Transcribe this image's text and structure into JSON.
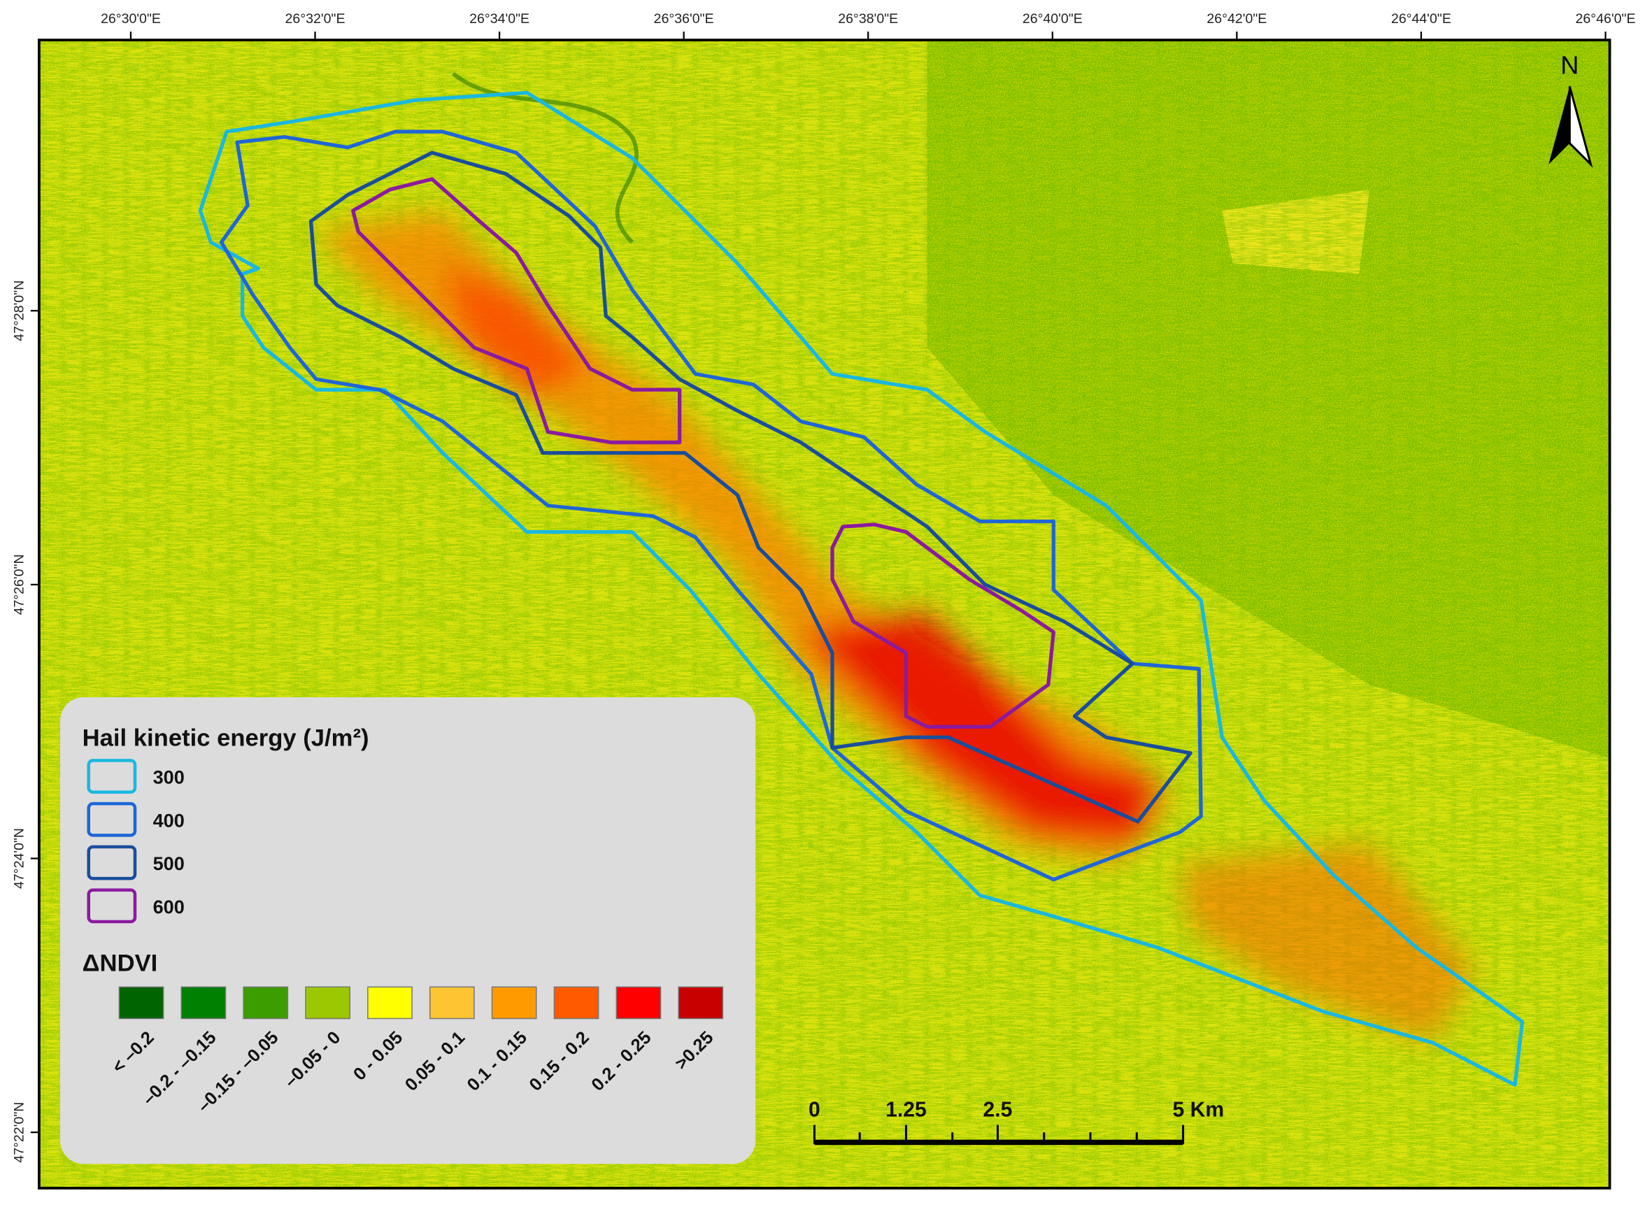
{
  "graticule": {
    "longitudes": [
      "26°30'0\"E",
      "26°32'0\"E",
      "26°34'0\"E",
      "26°36'0\"E",
      "26°38'0\"E",
      "26°40'0\"E",
      "26°42'0\"E",
      "26°44'0\"E",
      "26°46'0\"E"
    ],
    "latitudes": [
      "47°28'0\"N",
      "47°26'0\"N",
      "47°24'0\"N",
      "47°22'0\"N"
    ]
  },
  "north_arrow": "N",
  "legend": {
    "title": "Hail kinetic energy (J/m²)",
    "contours": [
      {
        "label": "300",
        "color": "#1ab8e0"
      },
      {
        "label": "400",
        "color": "#1f66d6"
      },
      {
        "label": "500",
        "color": "#1a4d9c"
      },
      {
        "label": "600",
        "color": "#8b1aa0"
      }
    ],
    "ndvi_title": "ΔNDVI",
    "ndvi_classes": [
      {
        "label": "< –0.2",
        "color": "#006400"
      },
      {
        "label": "–0.2 - –0.15",
        "color": "#008000"
      },
      {
        "label": "–0.15 - –0.05",
        "color": "#3c9d00"
      },
      {
        "label": "–0.05 - 0",
        "color": "#9bc800"
      },
      {
        "label": "0 - 0.05",
        "color": "#ffff00"
      },
      {
        "label": "0.05 - 0.1",
        "color": "#ffc432"
      },
      {
        "label": "0.1 - 0.15",
        "color": "#ff9a00"
      },
      {
        "label": "0.15 - 0.2",
        "color": "#ff5a00"
      },
      {
        "label": "0.2 - 0.25",
        "color": "#ff0000"
      },
      {
        "label": ">0.25",
        "color": "#c80000"
      }
    ]
  },
  "scale_bar": {
    "labels": [
      "0",
      "1.25",
      "2.5",
      "5 Km"
    ]
  }
}
